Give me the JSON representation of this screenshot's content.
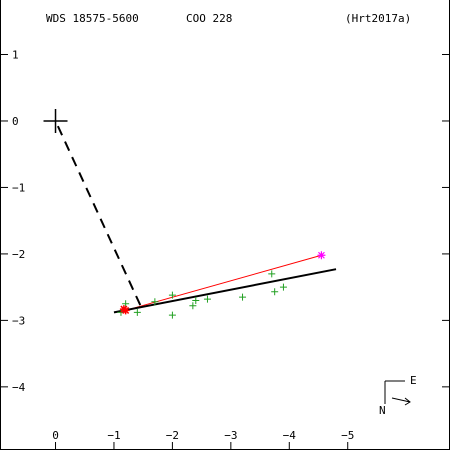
{
  "header": {
    "wds": "WDS 18575-5600",
    "discoverer": "COO 228",
    "reference": "(Hrt2017a)"
  },
  "compass": {
    "east_label": "E",
    "north_label": "N"
  },
  "colors": {
    "axes": "#000000",
    "fitted_orbit": "#000000",
    "primary_marker": "#000000",
    "observations": "#22a022",
    "residual_line": "#ff0000",
    "special_obs": "#ff00ff",
    "speckle_obs": "#ff0000"
  },
  "chart_data": {
    "type": "scatter",
    "title": "",
    "xlabel": "",
    "ylabel": "",
    "xlim": [
      0.95,
      -6.75
    ],
    "ylim": [
      -4.95,
      1.82
    ],
    "x_ticks": [
      -5,
      -4,
      -3,
      -2,
      -1,
      0
    ],
    "y_ticks": [
      1,
      0,
      -1,
      -2,
      -3,
      -4
    ],
    "grid": false,
    "primary": {
      "x": 0,
      "y": 0
    },
    "fitted_orbit": [
      {
        "x": -4.8,
        "y": -2.23
      },
      {
        "x": -1.0,
        "y": -2.88
      }
    ],
    "periastron_link": [
      {
        "x": -1.45,
        "y": -2.77
      },
      {
        "x": 0,
        "y": 0
      }
    ],
    "green_observations": [
      {
        "x": -3.7,
        "y": -2.3
      },
      {
        "x": -3.9,
        "y": -2.5
      },
      {
        "x": -3.75,
        "y": -2.57
      },
      {
        "x": -3.2,
        "y": -2.65
      },
      {
        "x": -2.6,
        "y": -2.68
      },
      {
        "x": -2.4,
        "y": -2.7
      },
      {
        "x": -2.35,
        "y": -2.78
      },
      {
        "x": -2.0,
        "y": -2.62
      },
      {
        "x": -2.0,
        "y": -2.92
      },
      {
        "x": -1.7,
        "y": -2.72
      },
      {
        "x": -1.4,
        "y": -2.88
      },
      {
        "x": -1.2,
        "y": -2.75
      },
      {
        "x": -1.12,
        "y": -2.88
      }
    ],
    "magenta_observations": [
      {
        "x": -4.55,
        "y": -2.02
      }
    ],
    "red_observations": [
      {
        "x": -1.2,
        "y": -2.85
      },
      {
        "x": -1.17,
        "y": -2.83
      }
    ],
    "red_lines": [
      {
        "from": {
          "x": -4.55,
          "y": -2.02
        },
        "to": {
          "x": -1.2,
          "y": -2.85
        }
      }
    ]
  }
}
